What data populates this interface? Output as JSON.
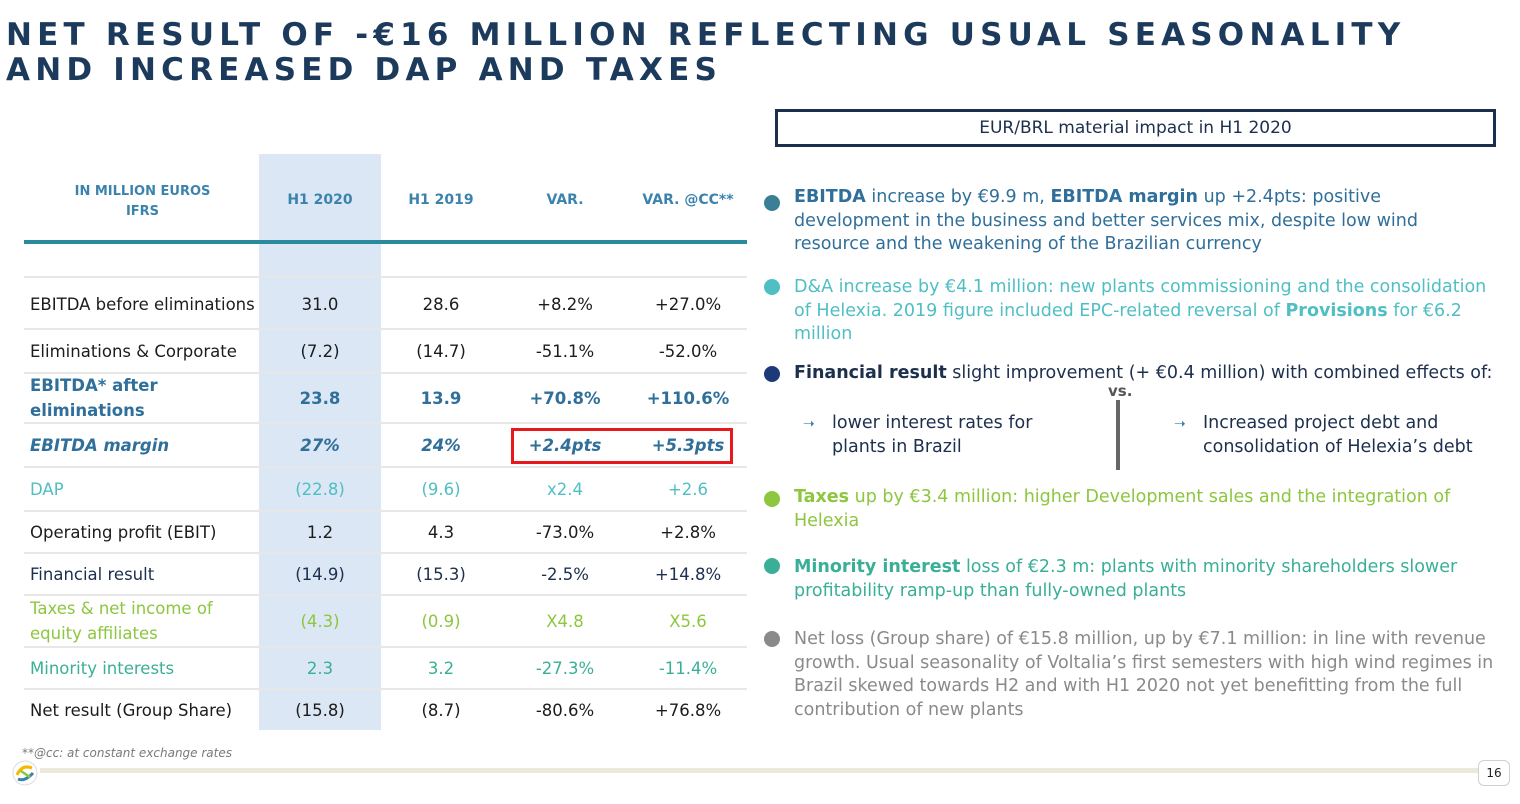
{
  "title": "NET RESULT OF -€16 MILLION REFLECTING USUAL SEASONALITY AND INCREASED DAP AND TAXES",
  "table": {
    "header_label_line1": "IN MILLION EUROS",
    "header_label_line2": "IFRS",
    "columns": [
      "H1 2020",
      "H1 2019",
      "VAR.",
      "VAR. @CC**"
    ],
    "rows": [
      {
        "label": "EBITDA before eliminations",
        "values": [
          "31.0",
          "28.6",
          "+8.2%",
          "+27.0%"
        ]
      },
      {
        "label": "Eliminations & Corporate",
        "values": [
          "(7.2)",
          "(14.7)",
          "-51.1%",
          "-52.0%"
        ]
      },
      {
        "label": "EBITDA* after eliminations",
        "values": [
          "23.8",
          "13.9",
          "+70.8%",
          "+110.6%"
        ]
      },
      {
        "label": "EBITDA margin",
        "values": [
          "27%",
          "24%",
          "+2.4pts",
          "+5.3pts"
        ]
      },
      {
        "label": "DAP",
        "values": [
          "(22.8)",
          "(9.6)",
          "x2.4",
          "+2.6"
        ]
      },
      {
        "label": "Operating profit (EBIT)",
        "values": [
          "1.2",
          "4.3",
          "-73.0%",
          "+2.8%"
        ]
      },
      {
        "label": "Financial result",
        "values": [
          "(14.9)",
          "(15.3)",
          "-2.5%",
          "+14.8%"
        ]
      },
      {
        "label": "Taxes & net income of equity affiliates",
        "values": [
          "(4.3)",
          "(0.9)",
          "X4.8",
          "X5.6"
        ]
      },
      {
        "label": "Minority interests",
        "values": [
          "2.3",
          "3.2",
          "-27.3%",
          "-11.4%"
        ]
      },
      {
        "label": "Net result (Group Share)",
        "values": [
          "(15.8)",
          "(8.7)",
          "-80.6%",
          "+76.8%"
        ]
      }
    ],
    "footnote": "**@cc: at constant exchange rates"
  },
  "right": {
    "box_title": "EUR/BRL material impact in H1 2020",
    "b1": {
      "k1": "EBITDA",
      "t1": " increase by €9.9 m, ",
      "k2": "EBITDA margin",
      "t2": " up +2.4pts: positive development in the business and better services mix, despite low wind resource and the weakening of the Brazilian currency"
    },
    "b2": {
      "t1": "D&A increase by €4.1 million: new plants commissioning and the consolidation of Helexia. 2019 figure included EPC-related reversal of ",
      "k1": "Provisions",
      "t2": " for €6.2 million"
    },
    "b3": {
      "k1": "Financial result",
      "t1": " slight improvement (+ €0.4 million) with combined effects of:"
    },
    "vs": "vs.",
    "sub_left": "lower interest rates for plants in Brazil",
    "sub_right": "Increased project debt and consolidation of Helexia’s debt",
    "arrow": "➝",
    "b4": {
      "k1": "Taxes",
      "t1": " up by €3.4 million: higher Development sales and the integration of Helexia"
    },
    "b5": {
      "k1": "Minority interest",
      "t1": " loss of €2.3 m: plants with minority shareholders slower profitability ramp-up than fully-owned plants"
    },
    "b6": {
      "t1": "Net loss (Group share) of €15.8 million, up by €7.1 million: in line with revenue growth. Usual seasonality of Voltalia’s first semesters with high wind regimes in Brazil skewed towards H2 and with H1 2020 not yet benefitting from the full contribution of new plants"
    }
  },
  "page_number": "16",
  "colors": {
    "navy": "#1c2f4d",
    "blue": "#3b83ad",
    "teal": "#2a8a9e",
    "light_teal": "#4fbfc4",
    "green": "#8dc63f",
    "sea_green": "#3aaf97",
    "gray": "#8a8a8a",
    "red": "#e8181c"
  },
  "icons": [
    "voltalia-logo-icon",
    "arrow-right-icon"
  ]
}
